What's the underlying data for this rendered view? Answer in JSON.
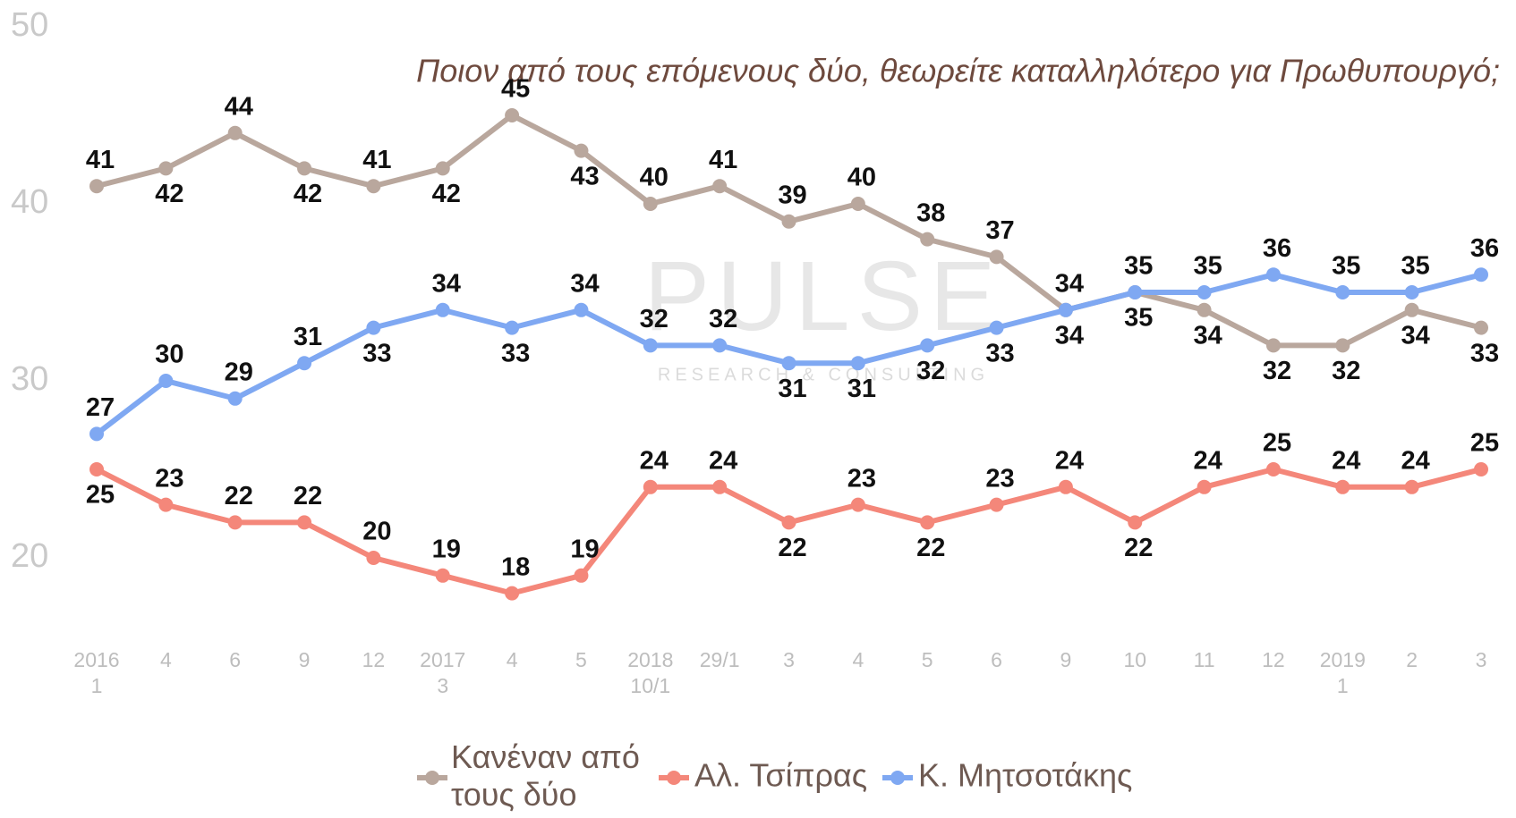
{
  "chart_data": {
    "type": "line",
    "subtitle": "Ποιον από τους επόμενους δύο, θεωρείτε καταλληλότερο για Πρωθυπουργό;",
    "watermark": "PULSE",
    "watermark_sub": "RESEARCH & CONSULTING",
    "categories": [
      [
        "2016",
        "1"
      ],
      "4",
      "6",
      "9",
      "12",
      [
        "2017",
        "3"
      ],
      "4",
      "5",
      [
        "2018",
        "10/1"
      ],
      "29/1",
      "3",
      "4",
      "5",
      "6",
      "9",
      "10",
      "11",
      "12",
      [
        "2019",
        "1"
      ],
      "2",
      "3"
    ],
    "series": [
      {
        "name": "Κανέναν από τους δύο",
        "color": "#b9a79d",
        "values": [
          41,
          42,
          44,
          42,
          41,
          42,
          45,
          43,
          40,
          41,
          39,
          40,
          38,
          37,
          34,
          35,
          34,
          32,
          32,
          34,
          33
        ]
      },
      {
        "name": "Αλ. Τσίπρας",
        "color": "#f4877a",
        "values": [
          25,
          23,
          22,
          22,
          20,
          19,
          18,
          19,
          24,
          24,
          22,
          23,
          22,
          23,
          24,
          22,
          24,
          25,
          24,
          24,
          25
        ]
      },
      {
        "name": "Κ. Μητσοτάκης",
        "color": "#7fa8f2",
        "values": [
          27,
          30,
          29,
          31,
          33,
          34,
          33,
          34,
          32,
          32,
          31,
          31,
          32,
          33,
          34,
          35,
          35,
          36,
          35,
          35,
          36
        ]
      }
    ],
    "ylim": [
      20,
      50
    ],
    "yticks": [
      20,
      30,
      40,
      50
    ]
  }
}
